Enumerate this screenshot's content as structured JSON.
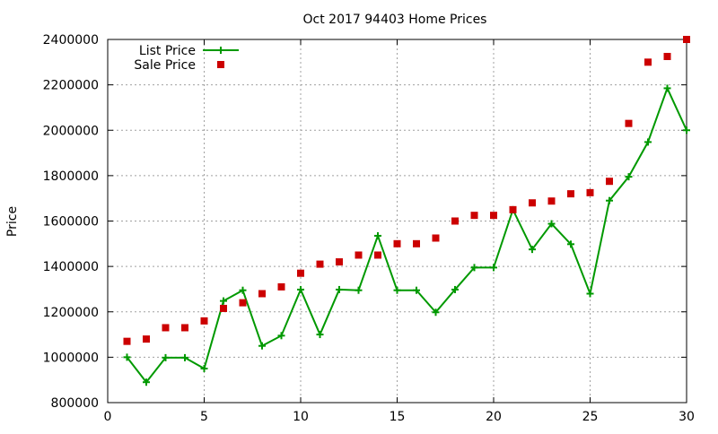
{
  "chart_data": {
    "type": "line",
    "title": "Oct 2017 94403 Home Prices",
    "xlabel": "",
    "ylabel": "Price",
    "xlim": [
      0,
      30
    ],
    "ylim": [
      800000,
      2400000
    ],
    "x_ticks": [
      0,
      5,
      10,
      15,
      20,
      25,
      30
    ],
    "y_ticks": [
      800000,
      1000000,
      1200000,
      1400000,
      1600000,
      1800000,
      2000000,
      2200000,
      2400000
    ],
    "grid": true,
    "legend_position": "top-left",
    "x": [
      1,
      2,
      3,
      4,
      5,
      6,
      7,
      8,
      9,
      10,
      11,
      12,
      13,
      14,
      15,
      16,
      17,
      18,
      19,
      20,
      21,
      22,
      23,
      24,
      25,
      26,
      27,
      28,
      29,
      30
    ],
    "series": [
      {
        "name": "List Price",
        "style": "line-plus",
        "color": "#009900",
        "values": [
          1000000,
          890000,
          998000,
          998000,
          950000,
          1248000,
          1295000,
          1050000,
          1095000,
          1298000,
          1100000,
          1298000,
          1295000,
          1535000,
          1295000,
          1295000,
          1198000,
          1298000,
          1395000,
          1395000,
          1650000,
          1475000,
          1588000,
          1498000,
          1280000,
          1690000,
          1795000,
          1948000,
          2185000,
          2000000
        ]
      },
      {
        "name": "Sale Price",
        "style": "square-markers",
        "color": "#cc0000",
        "values": [
          1070000,
          1080000,
          1130000,
          1130000,
          1160000,
          1215000,
          1240000,
          1280000,
          1310000,
          1370000,
          1410000,
          1420000,
          1450000,
          1450000,
          1500000,
          1500000,
          1525000,
          1600000,
          1625000,
          1625000,
          1650000,
          1680000,
          1688000,
          1720000,
          1725000,
          1775000,
          2030000,
          2300000,
          2325000,
          2400000
        ]
      }
    ]
  }
}
